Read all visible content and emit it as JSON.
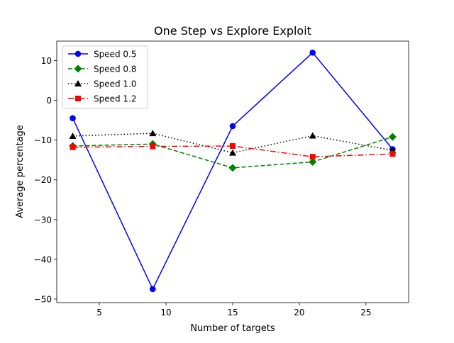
{
  "chart_data": {
    "type": "line",
    "title": "One Step vs Explore Exploit",
    "xlabel": "Number of targets",
    "ylabel": "Average percentage",
    "x": [
      3,
      9,
      15,
      21,
      27
    ],
    "xlim": [
      1.8,
      28.2
    ],
    "ylim": [
      -50.9,
      14.9
    ],
    "xticks": [
      5,
      10,
      15,
      20,
      25
    ],
    "yticks": [
      10,
      0,
      -10,
      -20,
      -30,
      -40,
      -50
    ],
    "grid": false,
    "legend_position": "top-left",
    "series": [
      {
        "name": "Speed 0.5",
        "values": [
          -4.5,
          -47.5,
          -6.5,
          12.0,
          -12.3
        ],
        "color": "#0000ff",
        "marker": "circle",
        "linestyle": "solid"
      },
      {
        "name": "Speed 0.8",
        "values": [
          -11.5,
          -11.0,
          -17.0,
          -15.5,
          -9.2
        ],
        "color": "#008000",
        "marker": "diamond",
        "linestyle": "dashed"
      },
      {
        "name": "Speed 1.0",
        "values": [
          -9.0,
          -8.3,
          -13.2,
          -8.9,
          -12.6
        ],
        "color": "#000000",
        "marker": "triangle",
        "linestyle": "dotted"
      },
      {
        "name": "Speed 1.2",
        "values": [
          -11.8,
          -11.6,
          -11.5,
          -14.2,
          -13.5
        ],
        "color": "#ff0000",
        "marker": "square",
        "linestyle": "dashdot"
      }
    ]
  }
}
